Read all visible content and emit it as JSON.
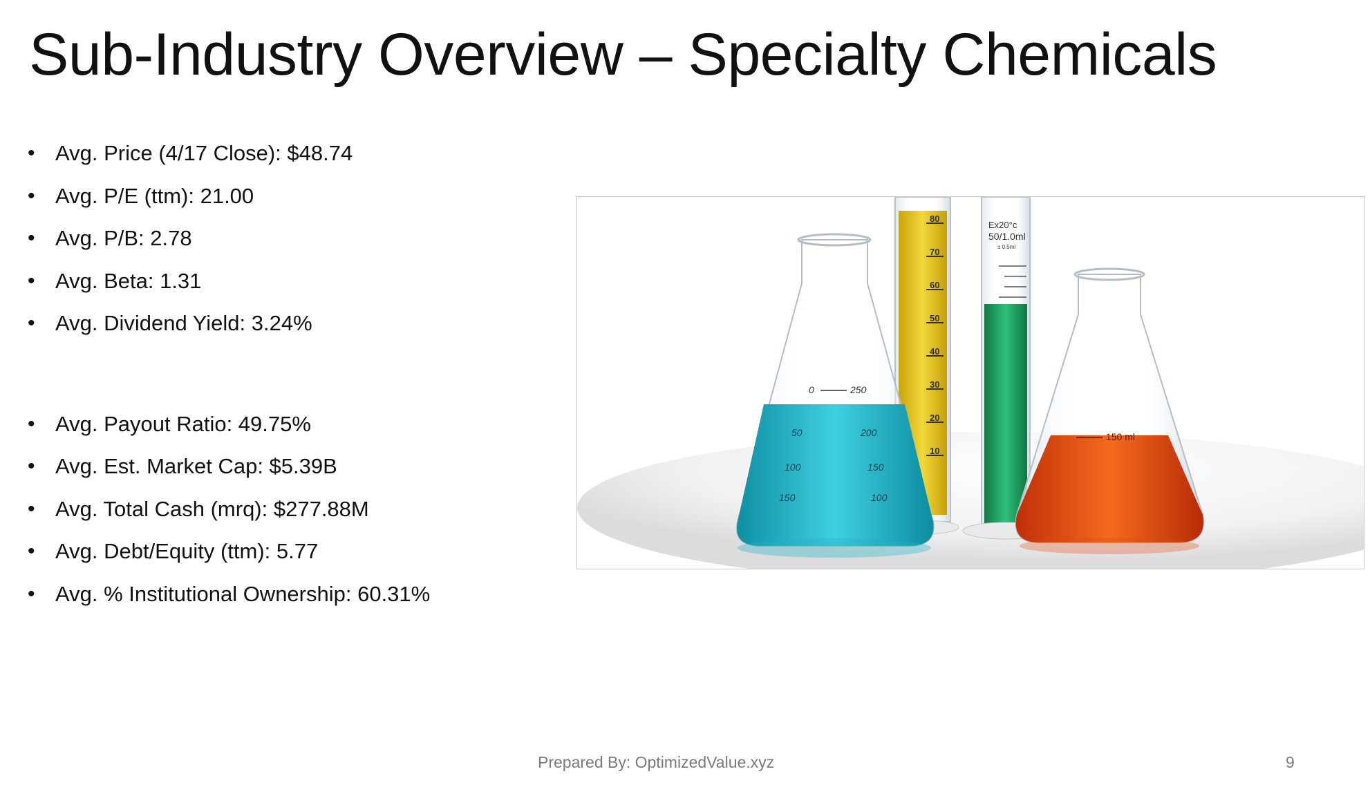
{
  "slide": {
    "title": "Sub-Industry Overview – Specialty Chemicals",
    "bullets": [
      "Avg. Price (4/17 Close): $48.74",
      "Avg. P/E (ttm): 21.00",
      "Avg. P/B:  2.78",
      "Avg. Beta: 1.31",
      "Avg. Dividend Yield: 3.24%",
      "Avg. Payout Ratio: 49.75%",
      "Avg. Est. Market Cap: $5.39B",
      "Avg. Total Cash (mrq): $277.88M",
      "Avg. Debt/Equity (ttm): 5.77",
      "Avg. % Institutional Ownership: 60.31%"
    ],
    "footer_text": "Prepared By: OptimizedValue.xyz",
    "page_number": "9"
  },
  "image": {
    "cylinder_marks": [
      "80",
      "70",
      "60",
      "50",
      "40",
      "30",
      "20",
      "10"
    ],
    "cylinder_label": [
      "Ex20°c",
      "50/1.0ml",
      "± 0.5ml"
    ],
    "flask_left_marks": [
      "0",
      "250",
      "50",
      "200",
      "100",
      "150",
      "150",
      "100"
    ],
    "flask_right_mark": "150 ml",
    "colors": {
      "cyan_liquid": "#1fb3c8",
      "yellow_liquid": "#e3c21a",
      "green_liquid": "#1f9e63",
      "orange_liquid": "#e04a10"
    }
  }
}
